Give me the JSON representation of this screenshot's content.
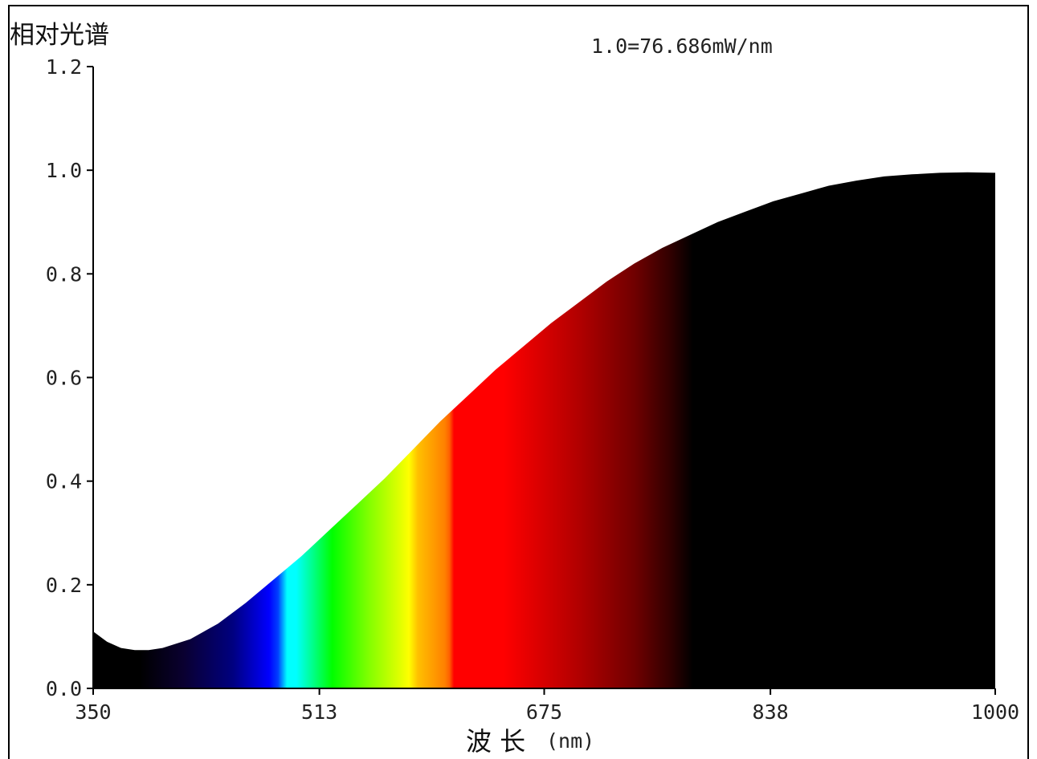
{
  "chart_data": {
    "type": "area",
    "ylabel": "相对光谱",
    "xlabel_main": "波 长",
    "xlabel_unit": "(nm)",
    "annotation": "1.0=76.686mW/nm",
    "xlim": [
      350,
      1000
    ],
    "ylim": [
      0,
      1.2
    ],
    "x_ticks": [
      350,
      513,
      675,
      838,
      1000
    ],
    "x_tick_labels": [
      "350",
      "513",
      "675",
      "838",
      "1000"
    ],
    "y_ticks": [
      0,
      0.2,
      0.4,
      0.6,
      0.8,
      1.0,
      1.2
    ],
    "y_tick_labels": [
      "0.0",
      "0.2",
      "0.4",
      "0.6",
      "0.8",
      "1.0",
      "1.2"
    ],
    "grid": false,
    "x": [
      350,
      360,
      370,
      380,
      390,
      400,
      420,
      440,
      460,
      480,
      500,
      520,
      540,
      560,
      580,
      600,
      620,
      640,
      660,
      680,
      700,
      720,
      740,
      760,
      780,
      800,
      820,
      840,
      860,
      880,
      900,
      920,
      940,
      960,
      980,
      1000
    ],
    "values": [
      0.11,
      0.09,
      0.078,
      0.074,
      0.074,
      0.078,
      0.095,
      0.125,
      0.165,
      0.21,
      0.255,
      0.305,
      0.355,
      0.405,
      0.46,
      0.515,
      0.565,
      0.615,
      0.66,
      0.705,
      0.745,
      0.785,
      0.82,
      0.85,
      0.875,
      0.9,
      0.92,
      0.94,
      0.955,
      0.97,
      0.98,
      0.988,
      0.992,
      0.995,
      0.996,
      0.995
    ],
    "fill_colors": {
      "uv": "#000000",
      "violet": "#100030",
      "blue": "#0000ff",
      "cyan": "#00ffff",
      "green": "#00ff00",
      "yellow": "#ffff00",
      "orange": "#ff8000",
      "red": "#ff0000",
      "deep_red": "#600000",
      "ir": "#000000"
    }
  }
}
